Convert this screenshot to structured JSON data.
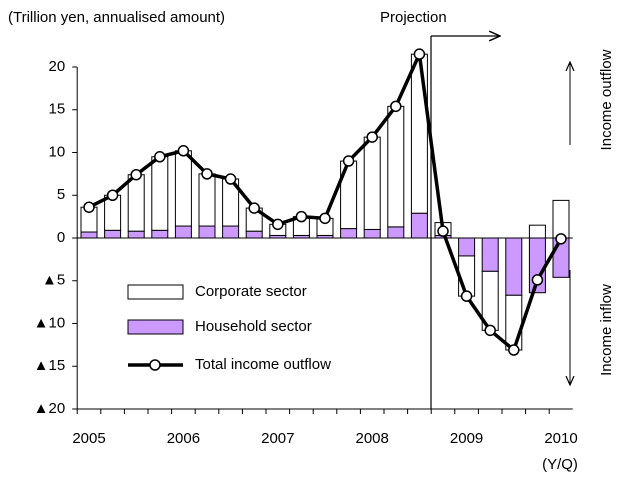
{
  "chart_data": {
    "type": "bar",
    "subtitle": "(Trillion yen, annualised amount)",
    "annotations": {
      "projection": "Projection",
      "outflow": "Income outflow",
      "inflow": "Income inflow",
      "x_unit": "(Y/Q)"
    },
    "categories": [
      "2005",
      null,
      null,
      null,
      "2006",
      null,
      null,
      null,
      "2007",
      null,
      null,
      null,
      "2008",
      null,
      null,
      null,
      "2009",
      null,
      null,
      null,
      "2010"
    ],
    "series": [
      {
        "name": "Corporate sector",
        "color": "#ffffff",
        "values": [
          2.9,
          4.1,
          6.6,
          8.6,
          8.8,
          6.1,
          5.5,
          2.7,
          1.3,
          2.2,
          2.0,
          7.9,
          10.8,
          14.1,
          18.6,
          1.5,
          -4.7,
          -6.9,
          -6.4,
          1.5,
          4.4
        ]
      },
      {
        "name": "Household sector",
        "color": "#cc99ff",
        "values": [
          0.7,
          0.9,
          0.8,
          0.9,
          1.4,
          1.4,
          1.4,
          0.8,
          0.3,
          0.3,
          0.3,
          1.1,
          1.0,
          1.3,
          2.9,
          0.3,
          -2.1,
          -3.9,
          -6.7,
          -6.4,
          -4.6
        ]
      },
      {
        "name": "Total income outflow",
        "type": "line",
        "color": "#000000",
        "values": [
          3.6,
          5.0,
          7.4,
          9.5,
          10.2,
          7.5,
          6.9,
          3.5,
          1.6,
          2.5,
          2.3,
          9.0,
          11.8,
          15.4,
          21.5,
          0.8,
          -6.8,
          -10.8,
          -13.1,
          -4.9,
          -0.1
        ]
      }
    ],
    "ylim": [
      -20,
      20
    ],
    "yticks": [
      {
        "value": -20,
        "label": "▲20"
      },
      {
        "value": -15,
        "label": "▲15"
      },
      {
        "value": -10,
        "label": "▲10"
      },
      {
        "value": -5,
        "label": "▲5"
      },
      0,
      5,
      10,
      15,
      20
    ]
  }
}
